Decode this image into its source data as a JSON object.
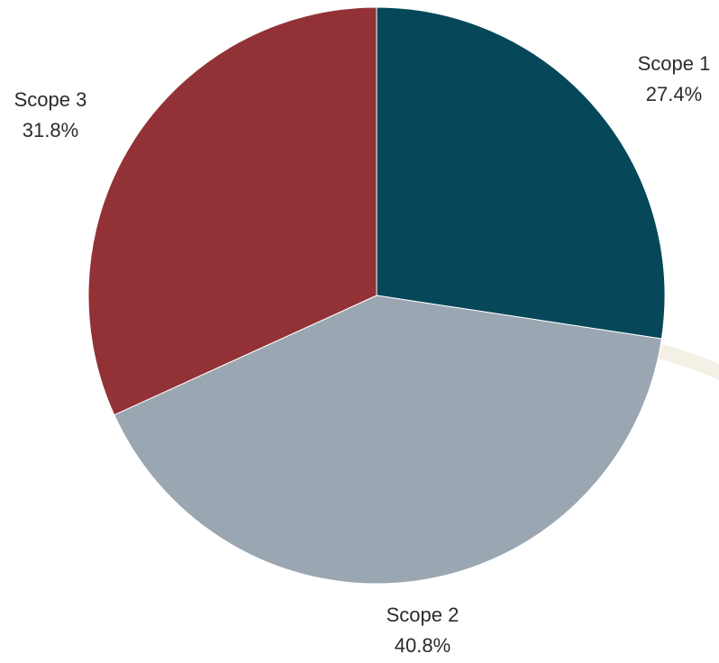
{
  "chart_data": {
    "type": "pie",
    "title": "",
    "categories": [
      "Scope 1",
      "Scope 2",
      "Scope 3"
    ],
    "values": [
      27.4,
      40.8,
      31.8
    ],
    "value_labels": [
      "27.4%",
      "40.8%",
      "31.8%"
    ],
    "colors": [
      "#06485a",
      "#9aa6b1",
      "#923236"
    ],
    "start_angle_deg": 0,
    "direction": "clockwise",
    "legend": "none"
  }
}
